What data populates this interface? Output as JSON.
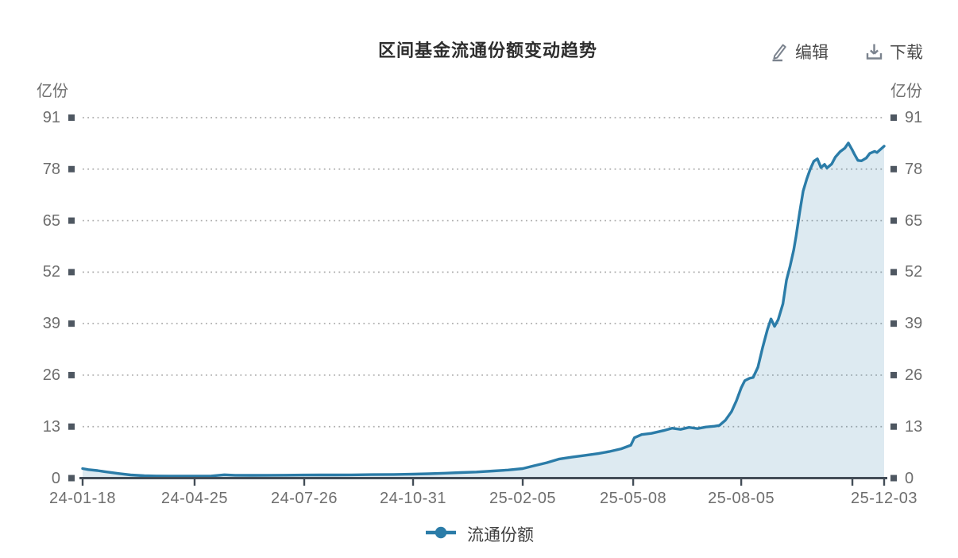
{
  "header": {
    "title": "区间基金流通份额变动趋势"
  },
  "toolbar": {
    "edit_label": "编辑",
    "download_label": "下载"
  },
  "units": {
    "left": "亿份",
    "right": "亿份"
  },
  "legend": {
    "items": [
      {
        "label": "流通份额",
        "color": "#2b7ca8"
      }
    ]
  },
  "colors": {
    "line": "#2b7ca8",
    "area": "rgba(43,124,168,0.16)",
    "axis": "#434d57",
    "tick_square": "#4e5761",
    "grid_dot": "#adadad",
    "axis_text": "#6e6e6e"
  },
  "chart_data": {
    "type": "area",
    "title": "区间基金流通份额变动趋势",
    "series_name": "流通份额",
    "xlabel": "",
    "ylabel": "亿份",
    "ylim": [
      0,
      91
    ],
    "y_ticks": [
      0,
      13,
      26,
      39,
      52,
      65,
      78,
      91
    ],
    "grid": "horizontal-dotted",
    "legend_position": "bottom",
    "x_ticks": [
      {
        "label": "24-01-18",
        "date": "2024-01-18"
      },
      {
        "label": "24-04-25",
        "date": "2024-04-25"
      },
      {
        "label": "24-07-26",
        "date": "2024-07-26"
      },
      {
        "label": "24-10-31",
        "date": "2024-10-31"
      },
      {
        "label": "25-02-05",
        "date": "2025-02-05"
      },
      {
        "label": "25-05-08",
        "date": "2025-05-08"
      },
      {
        "label": "25-08-05",
        "date": "2025-08-05"
      },
      {
        "label": "25-12-03",
        "date": "2025-12-03"
      }
    ],
    "points": [
      [
        "2024-01-18",
        2.4
      ],
      [
        "2024-01-23",
        2.15
      ],
      [
        "2024-01-31",
        1.9
      ],
      [
        "2024-02-06",
        1.65
      ],
      [
        "2024-02-19",
        1.15
      ],
      [
        "2024-02-29",
        0.8
      ],
      [
        "2024-03-12",
        0.6
      ],
      [
        "2024-03-22",
        0.55
      ],
      [
        "2024-04-03",
        0.5
      ],
      [
        "2024-04-15",
        0.5
      ],
      [
        "2024-04-25",
        0.5
      ],
      [
        "2024-05-09",
        0.55
      ],
      [
        "2024-05-20",
        0.85
      ],
      [
        "2024-05-29",
        0.72
      ],
      [
        "2024-06-12",
        0.7
      ],
      [
        "2024-06-26",
        0.73
      ],
      [
        "2024-07-10",
        0.75
      ],
      [
        "2024-07-26",
        0.78
      ],
      [
        "2024-08-09",
        0.8
      ],
      [
        "2024-08-23",
        0.8
      ],
      [
        "2024-09-06",
        0.83
      ],
      [
        "2024-09-24",
        0.88
      ],
      [
        "2024-10-14",
        0.93
      ],
      [
        "2024-10-31",
        1.0
      ],
      [
        "2024-11-14",
        1.1
      ],
      [
        "2024-11-28",
        1.25
      ],
      [
        "2024-12-12",
        1.4
      ],
      [
        "2024-12-26",
        1.55
      ],
      [
        "2025-01-10",
        1.8
      ],
      [
        "2025-01-23",
        2.05
      ],
      [
        "2025-02-05",
        2.4
      ],
      [
        "2025-02-14",
        3.1
      ],
      [
        "2025-02-25",
        3.9
      ],
      [
        "2025-03-07",
        4.8
      ],
      [
        "2025-03-18",
        5.3
      ],
      [
        "2025-03-28",
        5.7
      ],
      [
        "2025-04-09",
        6.2
      ],
      [
        "2025-04-18",
        6.7
      ],
      [
        "2025-04-28",
        7.4
      ],
      [
        "2025-05-06",
        8.3
      ],
      [
        "2025-05-09",
        10.2
      ],
      [
        "2025-05-15",
        11.0
      ],
      [
        "2025-05-23",
        11.3
      ],
      [
        "2025-06-02",
        12.0
      ],
      [
        "2025-06-09",
        12.6
      ],
      [
        "2025-06-16",
        12.3
      ],
      [
        "2025-06-23",
        12.8
      ],
      [
        "2025-06-30",
        12.5
      ],
      [
        "2025-07-07",
        12.9
      ],
      [
        "2025-07-14",
        13.1
      ],
      [
        "2025-07-18",
        13.3
      ],
      [
        "2025-07-23",
        14.6
      ],
      [
        "2025-07-28",
        16.8
      ],
      [
        "2025-08-01",
        19.5
      ],
      [
        "2025-08-05",
        22.8
      ],
      [
        "2025-08-08",
        24.6
      ],
      [
        "2025-08-12",
        25.2
      ],
      [
        "2025-08-15",
        25.4
      ],
      [
        "2025-08-19",
        28.0
      ],
      [
        "2025-08-23",
        33.0
      ],
      [
        "2025-08-27",
        37.5
      ],
      [
        "2025-08-30",
        40.2
      ],
      [
        "2025-09-02",
        38.3
      ],
      [
        "2025-09-05",
        40.0
      ],
      [
        "2025-09-09",
        44.0
      ],
      [
        "2025-09-12",
        50.0
      ],
      [
        "2025-09-15",
        53.5
      ],
      [
        "2025-09-18",
        57.5
      ],
      [
        "2025-09-20",
        61.0
      ],
      [
        "2025-09-23",
        67.0
      ],
      [
        "2025-09-26",
        72.5
      ],
      [
        "2025-09-29",
        75.5
      ],
      [
        "2025-10-02",
        78.0
      ],
      [
        "2025-10-05",
        80.0
      ],
      [
        "2025-10-08",
        80.6
      ],
      [
        "2025-10-11",
        78.4
      ],
      [
        "2025-10-14",
        79.2
      ],
      [
        "2025-10-16",
        78.3
      ],
      [
        "2025-10-20",
        79.3
      ],
      [
        "2025-10-23",
        81.0
      ],
      [
        "2025-10-27",
        82.4
      ],
      [
        "2025-10-31",
        83.3
      ],
      [
        "2025-11-03",
        84.6
      ],
      [
        "2025-11-06",
        83.0
      ],
      [
        "2025-11-08",
        81.8
      ],
      [
        "2025-11-11",
        80.2
      ],
      [
        "2025-11-14",
        80.1
      ],
      [
        "2025-11-18",
        80.8
      ],
      [
        "2025-11-21",
        82.0
      ],
      [
        "2025-11-25",
        82.5
      ],
      [
        "2025-11-27",
        82.2
      ],
      [
        "2025-11-30",
        83.0
      ],
      [
        "2025-12-03",
        83.8
      ]
    ]
  }
}
